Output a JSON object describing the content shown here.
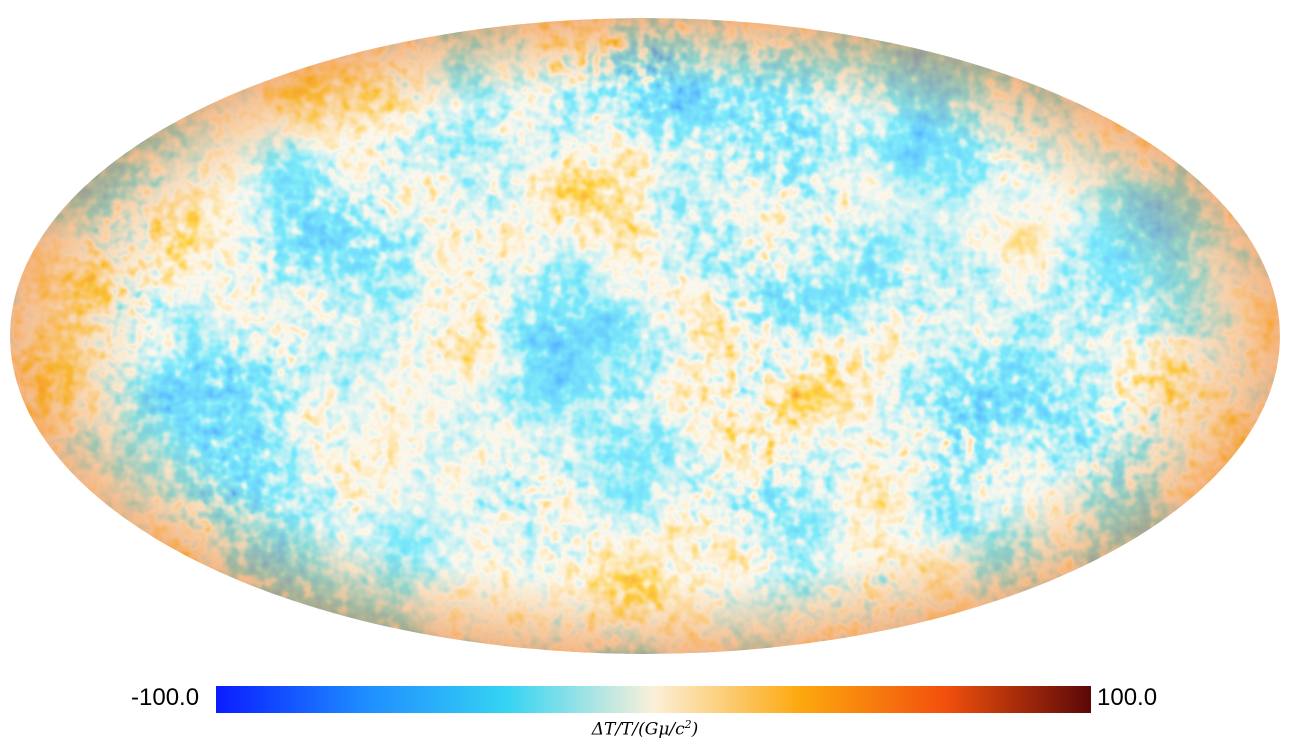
{
  "map": {
    "projection": "mollweide",
    "colormap": [
      "#0a1cff",
      "#1e8bff",
      "#35d4f3",
      "#fbf0d9",
      "#fda90f",
      "#f2500c",
      "#5b0808"
    ]
  },
  "colorbar": {
    "min_label": "-100.0",
    "max_label": "100.0",
    "label_prefix": "ΔT/T/(Gμ/c",
    "label_exp": "2",
    "label_suffix": ")"
  }
}
